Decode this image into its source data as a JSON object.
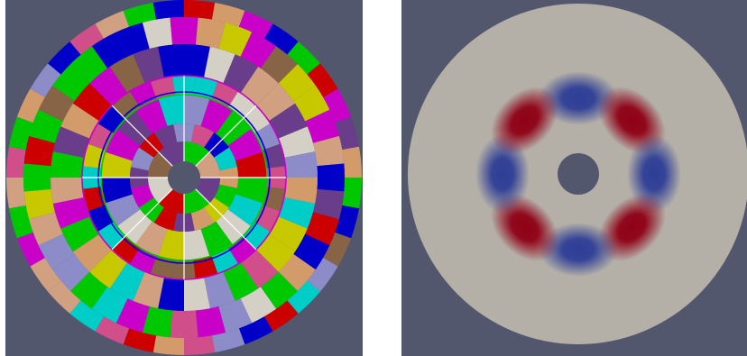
{
  "colors": {
    "background": "#52576e",
    "gap": "#ffffff",
    "partition_palette": [
      "#00ccc8",
      "#c800c8",
      "#d04e8a",
      "#0000c8",
      "#c8c800",
      "#00c800",
      "#cc0000",
      "#d49b6a",
      "#8b8cc8",
      "#d4d0c6",
      "#876445",
      "#6a3d8a",
      "#d0a080"
    ],
    "field_neutral": "#b4b0a8",
    "field_positive": "#8f0016",
    "field_negative": "#2e3e96"
  },
  "views": [
    {
      "id": "left",
      "content": "partitioned-mesh",
      "hole": true
    },
    {
      "id": "right",
      "content": "scalar-field",
      "hole": true
    }
  ]
}
